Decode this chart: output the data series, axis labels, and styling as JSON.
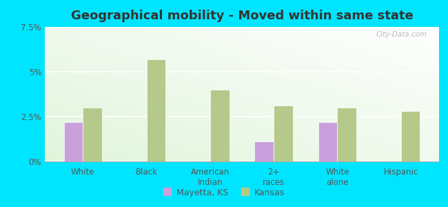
{
  "title": "Geographical mobility - Moved within same state",
  "categories": [
    "White",
    "Black",
    "American\nIndian",
    "2+\nraces",
    "White\nalone",
    "Hispanic"
  ],
  "mayetta_values": [
    2.2,
    0.0,
    0.0,
    1.1,
    2.2,
    0.0
  ],
  "kansas_values": [
    3.0,
    5.7,
    4.0,
    3.1,
    3.0,
    2.8
  ],
  "mayetta_color": "#c9a0dc",
  "kansas_color": "#b5c98a",
  "background_color": "#e8f5e0",
  "outer_background": "#00e5ff",
  "ylim": [
    0,
    7.5
  ],
  "yticks": [
    0,
    2.5,
    5.0,
    7.5
  ],
  "ytick_labels": [
    "0%",
    "2.5%",
    "5%",
    "7.5%"
  ],
  "legend_labels": [
    "Mayetta, KS",
    "Kansas"
  ],
  "title_fontsize": 13,
  "bar_width": 0.3,
  "watermark": "City-Data.com"
}
